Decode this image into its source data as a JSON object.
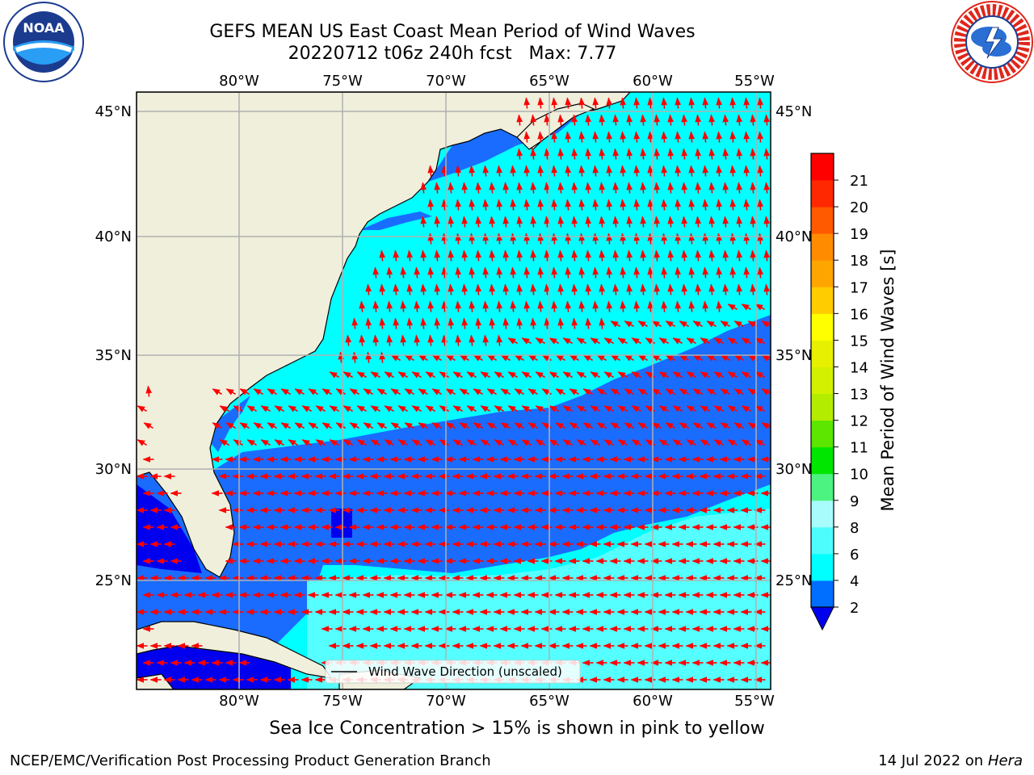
{
  "title": {
    "line1": "GEFS MEAN US East Coast Mean Period of Wind Waves",
    "line2": "20220712 t06z 240h fcst   Max: 7.77"
  },
  "logos": {
    "left": {
      "icon": "noaa-logo-icon",
      "text": "NOAA",
      "ring_text": "NATIONAL OCEANIC AND ATMOSPHERIC ADMINISTRATION · U.S. DEPARTMENT OF COMMERCE"
    },
    "right": {
      "icon": "nws-logo-icon",
      "ring_text": "NATIONAL WEATHER SERVICE"
    }
  },
  "map": {
    "lon_labels": [
      "80°W",
      "75°W",
      "70°W",
      "65°W",
      "60°W",
      "55°W"
    ],
    "lat_labels": [
      "45°N",
      "40°N",
      "35°N",
      "30°N",
      "25°N"
    ],
    "legend_label": "Wind Wave Direction (unscaled)",
    "colors": {
      "land": "#efefdc",
      "deep_blue": "#0000ee",
      "blue": "#1a6cff",
      "cyan": "#00ffff",
      "light_cyan": "#55ffff",
      "arrow": "#ff0000",
      "grid": "#b0b0b0"
    }
  },
  "colorbar": {
    "label": "Mean Period of Wind Waves [s]",
    "ticks": [
      "2",
      "4",
      "6",
      "8",
      "9",
      "10",
      "11",
      "12",
      "13",
      "14",
      "15",
      "16",
      "17",
      "18",
      "19",
      "20",
      "21"
    ],
    "colors": [
      "#006eff",
      "#00ffff",
      "#4dfcfc",
      "#a8fcfc",
      "#4df380",
      "#00e600",
      "#5ce600",
      "#b4ec00",
      "#d2f000",
      "#e6f000",
      "#ffff00",
      "#ffcc00",
      "#ffa500",
      "#ff8c00",
      "#ff5a00",
      "#ff2800",
      "#ff0000"
    ],
    "under_color": "#0000ee"
  },
  "caption": "Sea Ice Concentration > 15% is shown in pink to yellow",
  "footer": {
    "left": "NCEP/EMC/Verification Post Processing Product Generation Branch",
    "date": "14 Jul 2022 on ",
    "machine": "Hera"
  }
}
